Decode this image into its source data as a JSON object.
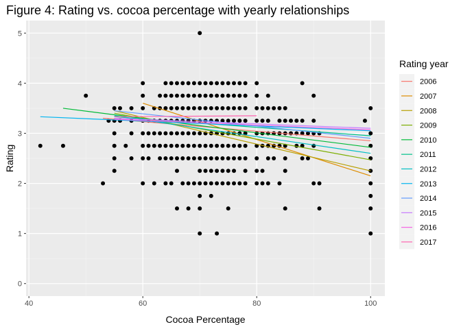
{
  "chart_data": {
    "type": "scatter",
    "title": "Figure 4: Rating vs. cocoa percentage with yearly relationships",
    "xlabel": "Cocoa Percentage",
    "ylabel": "Rating",
    "xlim": [
      39.5,
      102.5
    ],
    "ylim": [
      -0.25,
      5.25
    ],
    "x_ticks": [
      40,
      60,
      80,
      100
    ],
    "y_ticks": [
      0,
      1,
      2,
      3,
      4,
      5
    ],
    "grid": true,
    "legend": {
      "title": "Rating year",
      "placement": "right"
    },
    "points": [
      [
        42,
        2.75
      ],
      [
        46,
        2.75
      ],
      [
        50,
        3.75
      ],
      [
        53,
        2.0
      ],
      [
        54,
        3.25
      ],
      [
        55,
        3.5
      ],
      [
        55,
        3.25
      ],
      [
        55,
        3.0
      ],
      [
        55,
        2.75
      ],
      [
        55,
        2.5
      ],
      [
        55,
        2.25
      ],
      [
        56,
        3.25
      ],
      [
        56,
        3.5
      ],
      [
        57,
        2.75
      ],
      [
        58,
        3.5
      ],
      [
        58,
        3.25
      ],
      [
        58,
        3.0
      ],
      [
        58,
        2.5
      ],
      [
        60,
        4.0
      ],
      [
        60,
        3.75
      ],
      [
        60,
        3.5
      ],
      [
        60,
        3.25
      ],
      [
        60,
        3.0
      ],
      [
        60,
        2.75
      ],
      [
        60,
        2.5
      ],
      [
        60,
        2.0
      ],
      [
        61,
        3.25
      ],
      [
        61,
        3.0
      ],
      [
        61,
        2.75
      ],
      [
        61,
        2.5
      ],
      [
        62,
        3.5
      ],
      [
        62,
        3.25
      ],
      [
        62,
        3.0
      ],
      [
        62,
        2.75
      ],
      [
        62,
        2.0
      ],
      [
        63,
        3.75
      ],
      [
        63,
        3.5
      ],
      [
        63,
        3.25
      ],
      [
        63,
        3.0
      ],
      [
        63,
        2.75
      ],
      [
        63,
        2.5
      ],
      [
        64,
        4.0
      ],
      [
        64,
        3.75
      ],
      [
        64,
        3.5
      ],
      [
        64,
        3.25
      ],
      [
        64,
        3.0
      ],
      [
        64,
        2.75
      ],
      [
        64,
        2.5
      ],
      [
        64,
        2.0
      ],
      [
        65,
        4.0
      ],
      [
        65,
        3.75
      ],
      [
        65,
        3.5
      ],
      [
        65,
        3.25
      ],
      [
        65,
        3.0
      ],
      [
        65,
        2.75
      ],
      [
        65,
        2.5
      ],
      [
        65,
        2.0
      ],
      [
        66,
        4.0
      ],
      [
        66,
        3.75
      ],
      [
        66,
        3.5
      ],
      [
        66,
        3.25
      ],
      [
        66,
        3.0
      ],
      [
        66,
        2.75
      ],
      [
        66,
        2.5
      ],
      [
        66,
        2.25
      ],
      [
        66,
        1.5
      ],
      [
        67,
        4.0
      ],
      [
        67,
        3.75
      ],
      [
        67,
        3.5
      ],
      [
        67,
        3.25
      ],
      [
        67,
        3.0
      ],
      [
        67,
        2.75
      ],
      [
        67,
        2.5
      ],
      [
        67,
        2.0
      ],
      [
        68,
        4.0
      ],
      [
        68,
        3.75
      ],
      [
        68,
        3.5
      ],
      [
        68,
        3.25
      ],
      [
        68,
        3.0
      ],
      [
        68,
        2.75
      ],
      [
        68,
        2.5
      ],
      [
        68,
        2.0
      ],
      [
        68,
        1.5
      ],
      [
        69,
        4.0
      ],
      [
        69,
        3.75
      ],
      [
        69,
        3.5
      ],
      [
        69,
        3.25
      ],
      [
        69,
        3.0
      ],
      [
        69,
        2.75
      ],
      [
        69,
        2.5
      ],
      [
        69,
        2.0
      ],
      [
        70,
        5.0
      ],
      [
        70,
        4.0
      ],
      [
        70,
        3.75
      ],
      [
        70,
        3.5
      ],
      [
        70,
        3.25
      ],
      [
        70,
        3.0
      ],
      [
        70,
        2.75
      ],
      [
        70,
        2.5
      ],
      [
        70,
        2.25
      ],
      [
        70,
        2.0
      ],
      [
        70,
        1.75
      ],
      [
        70,
        1.5
      ],
      [
        70,
        1.0
      ],
      [
        71,
        4.0
      ],
      [
        71,
        3.75
      ],
      [
        71,
        3.5
      ],
      [
        71,
        3.25
      ],
      [
        71,
        3.0
      ],
      [
        71,
        2.75
      ],
      [
        71,
        2.5
      ],
      [
        71,
        2.25
      ],
      [
        71,
        2.0
      ],
      [
        72,
        4.0
      ],
      [
        72,
        3.75
      ],
      [
        72,
        3.5
      ],
      [
        72,
        3.25
      ],
      [
        72,
        3.0
      ],
      [
        72,
        2.75
      ],
      [
        72,
        2.5
      ],
      [
        72,
        2.25
      ],
      [
        72,
        2.0
      ],
      [
        72,
        1.75
      ],
      [
        73,
        4.0
      ],
      [
        73,
        3.75
      ],
      [
        73,
        3.5
      ],
      [
        73,
        3.25
      ],
      [
        73,
        3.0
      ],
      [
        73,
        2.75
      ],
      [
        73,
        2.5
      ],
      [
        73,
        2.25
      ],
      [
        73,
        2.0
      ],
      [
        73,
        1.0
      ],
      [
        74,
        4.0
      ],
      [
        74,
        3.75
      ],
      [
        74,
        3.5
      ],
      [
        74,
        3.25
      ],
      [
        74,
        3.0
      ],
      [
        74,
        2.75
      ],
      [
        74,
        2.5
      ],
      [
        74,
        2.25
      ],
      [
        74,
        2.0
      ],
      [
        75,
        4.0
      ],
      [
        75,
        3.75
      ],
      [
        75,
        3.5
      ],
      [
        75,
        3.25
      ],
      [
        75,
        3.0
      ],
      [
        75,
        2.75
      ],
      [
        75,
        2.5
      ],
      [
        75,
        2.25
      ],
      [
        75,
        2.0
      ],
      [
        75,
        1.5
      ],
      [
        76,
        4.0
      ],
      [
        76,
        3.75
      ],
      [
        76,
        3.5
      ],
      [
        76,
        3.25
      ],
      [
        76,
        3.0
      ],
      [
        76,
        2.75
      ],
      [
        76,
        2.5
      ],
      [
        76,
        2.25
      ],
      [
        76,
        2.0
      ],
      [
        77,
        4.0
      ],
      [
        77,
        3.75
      ],
      [
        77,
        3.5
      ],
      [
        77,
        3.25
      ],
      [
        77,
        3.0
      ],
      [
        77,
        2.75
      ],
      [
        77,
        2.5
      ],
      [
        77,
        2.0
      ],
      [
        78,
        4.0
      ],
      [
        78,
        3.75
      ],
      [
        78,
        3.5
      ],
      [
        78,
        3.25
      ],
      [
        78,
        3.0
      ],
      [
        78,
        2.75
      ],
      [
        78,
        2.5
      ],
      [
        78,
        2.25
      ],
      [
        78,
        2.0
      ],
      [
        80,
        4.0
      ],
      [
        80,
        3.75
      ],
      [
        80,
        3.5
      ],
      [
        80,
        3.25
      ],
      [
        80,
        3.0
      ],
      [
        80,
        2.75
      ],
      [
        80,
        2.5
      ],
      [
        80,
        2.25
      ],
      [
        80,
        2.0
      ],
      [
        81,
        3.5
      ],
      [
        81,
        3.25
      ],
      [
        81,
        3.0
      ],
      [
        81,
        2.75
      ],
      [
        81,
        2.25
      ],
      [
        81,
        2.0
      ],
      [
        82,
        3.75
      ],
      [
        82,
        3.5
      ],
      [
        82,
        3.25
      ],
      [
        82,
        3.0
      ],
      [
        82,
        2.75
      ],
      [
        82,
        2.5
      ],
      [
        82,
        2.0
      ],
      [
        83,
        3.5
      ],
      [
        83,
        3.0
      ],
      [
        83,
        2.75
      ],
      [
        83,
        2.5
      ],
      [
        84,
        3.5
      ],
      [
        84,
        3.25
      ],
      [
        84,
        3.0
      ],
      [
        84,
        2.75
      ],
      [
        84,
        2.0
      ],
      [
        85,
        3.5
      ],
      [
        85,
        3.25
      ],
      [
        85,
        3.0
      ],
      [
        85,
        2.75
      ],
      [
        85,
        2.5
      ],
      [
        85,
        2.25
      ],
      [
        85,
        1.5
      ],
      [
        86,
        3.25
      ],
      [
        86,
        3.0
      ],
      [
        87,
        3.25
      ],
      [
        87,
        3.0
      ],
      [
        87,
        2.75
      ],
      [
        88,
        4.0
      ],
      [
        88,
        3.25
      ],
      [
        88,
        3.0
      ],
      [
        88,
        2.75
      ],
      [
        88,
        2.5
      ],
      [
        89,
        3.0
      ],
      [
        89,
        2.5
      ],
      [
        90,
        3.75
      ],
      [
        90,
        3.25
      ],
      [
        90,
        3.0
      ],
      [
        90,
        2.75
      ],
      [
        90,
        2.0
      ],
      [
        91,
        3.0
      ],
      [
        91,
        2.0
      ],
      [
        91,
        1.5
      ],
      [
        99,
        3.25
      ],
      [
        100,
        3.5
      ],
      [
        100,
        3.0
      ],
      [
        100,
        2.75
      ],
      [
        100,
        2.5
      ],
      [
        100,
        2.25
      ],
      [
        100,
        2.0
      ],
      [
        100,
        1.75
      ],
      [
        100,
        1.5
      ],
      [
        100,
        1.0
      ]
    ],
    "series": [
      {
        "name": "2006",
        "color": "#F8766D",
        "line": [
          [
            53,
            3.3
          ],
          [
            100,
            2.85
          ]
        ]
      },
      {
        "name": "2007",
        "color": "#DE8C00",
        "line": [
          [
            60,
            3.6
          ],
          [
            100,
            2.15
          ]
        ]
      },
      {
        "name": "2008",
        "color": "#B79F00",
        "line": [
          [
            55,
            3.45
          ],
          [
            100,
            2.25
          ]
        ]
      },
      {
        "name": "2009",
        "color": "#7CAE00",
        "line": [
          [
            55,
            3.4
          ],
          [
            100,
            2.47
          ]
        ]
      },
      {
        "name": "2010",
        "color": "#00BA38",
        "line": [
          [
            46,
            3.5
          ],
          [
            100,
            2.72
          ]
        ]
      },
      {
        "name": "2011",
        "color": "#00C08B",
        "line": [
          [
            55,
            3.33
          ],
          [
            100,
            2.95
          ]
        ]
      },
      {
        "name": "2012",
        "color": "#00BFC4",
        "line": [
          [
            55,
            3.35
          ],
          [
            100,
            2.6
          ]
        ]
      },
      {
        "name": "2013",
        "color": "#00B4F0",
        "line": [
          [
            42,
            3.33
          ],
          [
            100,
            3.05
          ]
        ]
      },
      {
        "name": "2014",
        "color": "#619CFF",
        "line": [
          [
            55,
            3.45
          ],
          [
            100,
            2.9
          ]
        ]
      },
      {
        "name": "2015",
        "color": "#C77CFF",
        "line": [
          [
            55,
            3.3
          ],
          [
            100,
            3.1
          ]
        ]
      },
      {
        "name": "2016",
        "color": "#F564E3",
        "line": [
          [
            55,
            3.28
          ],
          [
            100,
            3.07
          ]
        ]
      },
      {
        "name": "2017",
        "color": "#FF64B0",
        "line": [
          [
            55,
            3.33
          ],
          [
            80,
            3.35
          ]
        ]
      }
    ]
  }
}
